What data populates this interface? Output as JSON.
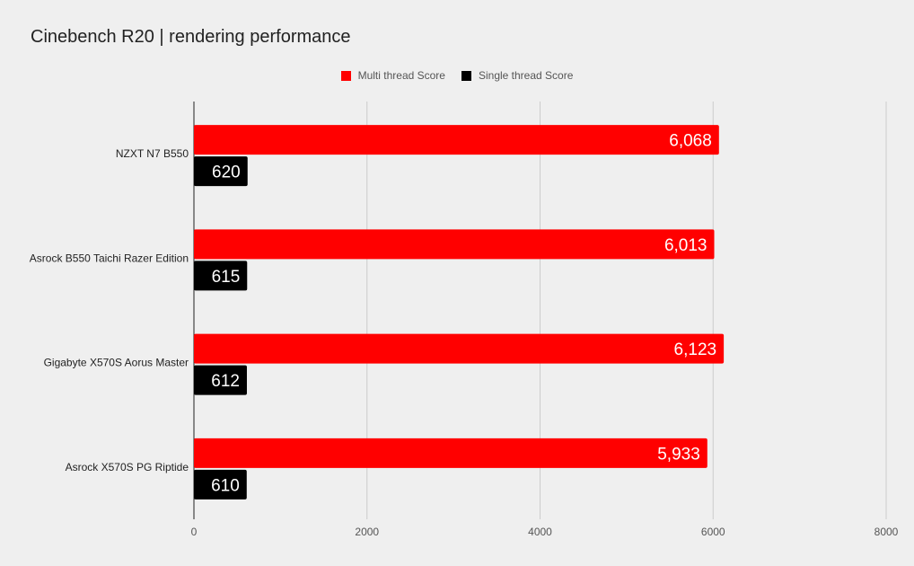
{
  "chart_data": {
    "type": "bar",
    "orientation": "horizontal",
    "title": "Cinebench R20 | rendering performance",
    "categories": [
      "NZXT N7 B550",
      "Asrock B550 Taichi Razer Edition",
      "Gigabyte X570S Aorus Master",
      "Asrock X570S PG Riptide"
    ],
    "series": [
      {
        "name": "Multi thread Score",
        "color": "#ff0000",
        "values": [
          6068,
          6013,
          6123,
          5933
        ],
        "labels": [
          "6,068",
          "6,013",
          "6,123",
          "5,933"
        ]
      },
      {
        "name": "Single thread Score",
        "color": "#000000",
        "values": [
          620,
          615,
          612,
          610
        ],
        "labels": [
          "620",
          "615",
          "612",
          "610"
        ]
      }
    ],
    "xlim": [
      0,
      8000
    ],
    "xticks": [
      0,
      2000,
      4000,
      6000,
      8000
    ],
    "xtick_labels": [
      "0",
      "2000",
      "4000",
      "6000",
      "8000"
    ],
    "grid": true,
    "legend_position": "top-center"
  }
}
